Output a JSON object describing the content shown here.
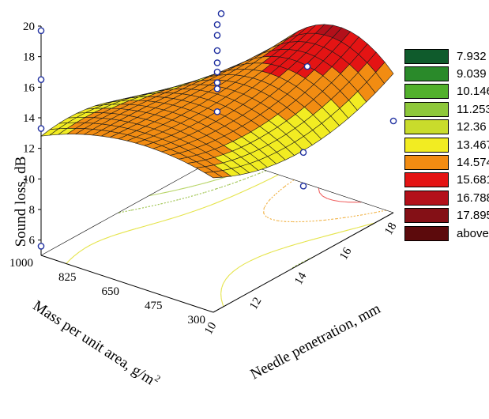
{
  "chart_data": {
    "type": "surface3d",
    "xlabel": "Needle penetration, mm",
    "ylabel": "Mass per unit area, g/m",
    "ylabel_sup": "2",
    "zlabel": "Sound loss, dB",
    "xlim": [
      10,
      18
    ],
    "ylim": [
      300,
      1000
    ],
    "zlim": [
      5,
      20
    ],
    "x_ticks": [
      "10",
      "12",
      "14",
      "16",
      "18"
    ],
    "y_ticks": [
      "300",
      "475",
      "650",
      "825",
      "1000"
    ],
    "z_ticks": [
      "6",
      "8",
      "10",
      "12",
      "14",
      "16",
      "18",
      "20"
    ],
    "legend": {
      "placement": "right",
      "levels": [
        {
          "label": "7.932",
          "color": "#0f5b2c"
        },
        {
          "label": "9.039",
          "color": "#2a8a2a"
        },
        {
          "label": "10.146",
          "color": "#52b02c"
        },
        {
          "label": "11.253",
          "color": "#8ec83a"
        },
        {
          "label": "12.36",
          "color": "#c9dc2c"
        },
        {
          "label": "13.467",
          "color": "#f2ec22"
        },
        {
          "label": "14.574",
          "color": "#f28c12"
        },
        {
          "label": "15.681",
          "color": "#e41414"
        },
        {
          "label": "16.788",
          "color": "#b3101a"
        },
        {
          "label": "17.895",
          "color": "#841016"
        },
        {
          "label": "above",
          "color": "#5c0a0c"
        }
      ]
    },
    "observed_points": [
      {
        "x": 10,
        "y": 1000,
        "z": 19.7
      },
      {
        "x": 10,
        "y": 1000,
        "z": 16.5
      },
      {
        "x": 10,
        "y": 1000,
        "z": 13.3
      },
      {
        "x": 10,
        "y": 1000,
        "z": 5.6
      },
      {
        "x": 14,
        "y": 1000,
        "z": 20.2
      },
      {
        "x": 14,
        "y": 1000,
        "z": 19.0
      },
      {
        "x": 14,
        "y": 650,
        "z": 18.7
      },
      {
        "x": 14,
        "y": 650,
        "z": 18.0
      },
      {
        "x": 14,
        "y": 650,
        "z": 17.0
      },
      {
        "x": 14,
        "y": 650,
        "z": 16.2
      },
      {
        "x": 14,
        "y": 650,
        "z": 15.6
      },
      {
        "x": 14,
        "y": 650,
        "z": 14.9
      },
      {
        "x": 14,
        "y": 650,
        "z": 14.5
      },
      {
        "x": 14,
        "y": 650,
        "z": 13.0
      },
      {
        "x": 14,
        "y": 300,
        "z": 12.2
      },
      {
        "x": 14,
        "y": 300,
        "z": 10.0
      },
      {
        "x": 18,
        "y": 1000,
        "z": 14.3
      },
      {
        "x": 18,
        "y": 650,
        "z": 12.7
      },
      {
        "x": 18,
        "y": 300,
        "z": 11.0
      }
    ]
  }
}
